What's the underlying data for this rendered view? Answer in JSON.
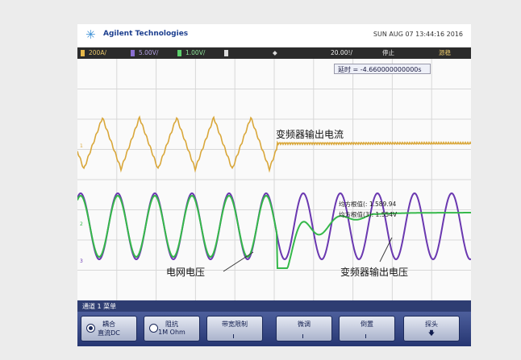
{
  "header": {
    "brand": "Agilent Technologies",
    "datetime": "SUN AUG 07 13:44:16 2016"
  },
  "status_bar": {
    "ch1": "200A/",
    "ch2": "5.00V/",
    "ch3": "1.00V/",
    "timebase": "20.00!/",
    "run_state": "停止",
    "trigger": "源稳"
  },
  "delay_label": "延时 = -4.660000000000s",
  "annotations": {
    "inverter_current": "变频器输出电流",
    "grid_voltage": "电网电压",
    "inverter_voltage": "变频器输出电压"
  },
  "measurements": {
    "line1": "均方根值(: 1.589.94",
    "line2": "均方根值(3): 1.554V"
  },
  "channel_bar": "通道 1 菜单",
  "softkeys": [
    {
      "line1": "耦合",
      "line2": "直流DC"
    },
    {
      "line1": "阻抗",
      "line2": "1M Ohm"
    },
    {
      "line1": "带宽限制",
      "line2": ""
    },
    {
      "line1": "微调",
      "line2": ""
    },
    {
      "line1": "倒置",
      "line2": ""
    },
    {
      "line1": "探头",
      "line2": "🡇"
    }
  ],
  "colors": {
    "ch1_trace": "#d9a73a",
    "ch2_trace": "#6a38b0",
    "ch3_trace": "#35b84a"
  },
  "icons": [
    "agilent-spark-icon",
    "trigger-icon",
    "down-arrow-icon"
  ]
}
